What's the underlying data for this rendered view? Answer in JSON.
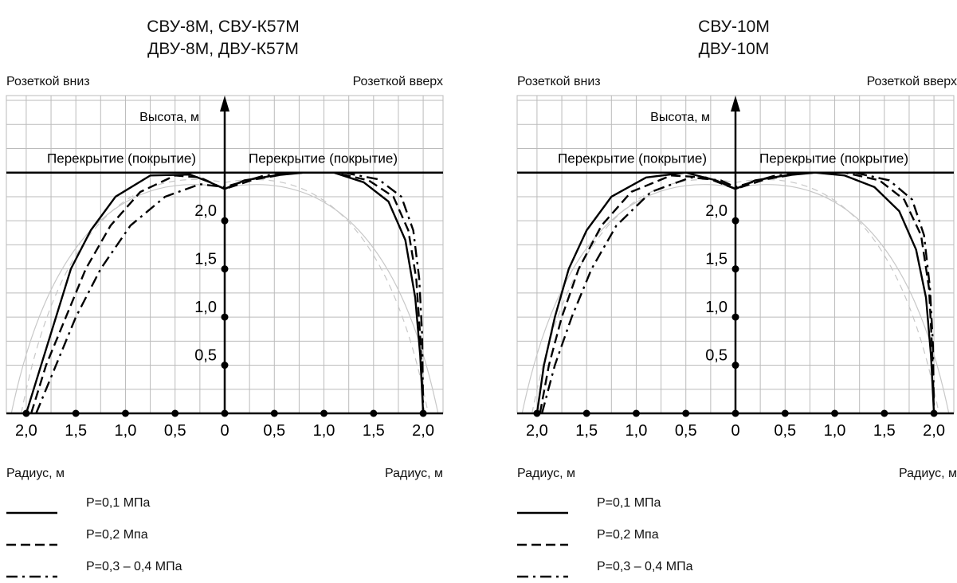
{
  "chart_data": [
    {
      "type": "line",
      "title_lines": [
        "СВУ-8М, СВУ-К57М",
        "ДВУ-8М, ДВУ-К57М"
      ],
      "corner_left": "Розеткой вниз",
      "corner_right": "Розеткой вверх",
      "ylabel": "Высота, м",
      "ceiling_left": "Перекрытие (покрытие)",
      "ceiling_right": "Перекрытие (покрытие)",
      "xlabel_left": "Радиус, м",
      "xlabel_right": "Радиус, м",
      "x_ticks": [
        "2,0",
        "1,5",
        "1,0",
        "0,5",
        "0",
        "0,5",
        "1,0",
        "1,5",
        "2,0"
      ],
      "y_ticks": [
        "0,5",
        "1,0",
        "1,5",
        "2,0"
      ],
      "xlim": [
        -2.2,
        2.2
      ],
      "ylim": [
        0,
        3.3
      ],
      "grid": true,
      "ceiling_height": 2.5,
      "series": [
        {
          "name": "P=0,1 МПа",
          "style": "solid",
          "points": [
            [
              -2.0,
              0
            ],
            [
              -1.85,
              0.5
            ],
            [
              -1.7,
              1.0
            ],
            [
              -1.55,
              1.5
            ],
            [
              -1.35,
              1.9
            ],
            [
              -1.1,
              2.25
            ],
            [
              -0.75,
              2.47
            ],
            [
              -0.35,
              2.48
            ],
            [
              -0.15,
              2.4
            ],
            [
              0,
              2.33
            ],
            [
              0.2,
              2.42
            ],
            [
              0.5,
              2.47
            ],
            [
              0.8,
              2.5
            ],
            [
              1.1,
              2.5
            ],
            [
              1.4,
              2.4
            ],
            [
              1.65,
              2.2
            ],
            [
              1.82,
              1.8
            ],
            [
              1.92,
              1.2
            ],
            [
              1.97,
              0.6
            ],
            [
              2.0,
              0
            ]
          ]
        },
        {
          "name": "P=0,2 Мпа",
          "style": "dash",
          "points": [
            [
              -1.95,
              0
            ],
            [
              -1.8,
              0.5
            ],
            [
              -1.6,
              1.0
            ],
            [
              -1.4,
              1.5
            ],
            [
              -1.15,
              1.95
            ],
            [
              -0.85,
              2.3
            ],
            [
              -0.5,
              2.47
            ],
            [
              -0.25,
              2.45
            ],
            [
              0,
              2.33
            ],
            [
              0.3,
              2.43
            ],
            [
              0.7,
              2.5
            ],
            [
              1.1,
              2.5
            ],
            [
              1.45,
              2.42
            ],
            [
              1.7,
              2.25
            ],
            [
              1.85,
              1.9
            ],
            [
              1.93,
              1.4
            ],
            [
              1.97,
              0.8
            ],
            [
              2.0,
              0
            ]
          ]
        },
        {
          "name": "P=0,3 – 0,4 МПа",
          "style": "dashdot",
          "points": [
            [
              -1.9,
              0
            ],
            [
              -1.7,
              0.5
            ],
            [
              -1.5,
              1.0
            ],
            [
              -1.25,
              1.5
            ],
            [
              -0.95,
              1.95
            ],
            [
              -0.6,
              2.25
            ],
            [
              -0.25,
              2.38
            ],
            [
              0,
              2.35
            ],
            [
              0.4,
              2.47
            ],
            [
              0.8,
              2.5
            ],
            [
              1.2,
              2.5
            ],
            [
              1.55,
              2.43
            ],
            [
              1.78,
              2.25
            ],
            [
              1.9,
              1.9
            ],
            [
              1.96,
              1.4
            ],
            [
              1.99,
              0.8
            ],
            [
              2.0,
              0
            ]
          ]
        }
      ]
    },
    {
      "type": "line",
      "title_lines": [
        "СВУ-10М",
        "ДВУ-10М"
      ],
      "corner_left": "Розеткой вниз",
      "corner_right": "Розеткой вверх",
      "ylabel": "Высота, м",
      "ceiling_left": "Перекрытие (покрытие)",
      "ceiling_right": "Перекрытие (покрытие)",
      "xlabel_left": "Радиус, м",
      "xlabel_right": "Радиус, м",
      "x_ticks": [
        "2,0",
        "1,5",
        "1,0",
        "0,5",
        "0",
        "0,5",
        "1,0",
        "1,5",
        "2,0"
      ],
      "y_ticks": [
        "0,5",
        "1,0",
        "1,5",
        "2,0"
      ],
      "xlim": [
        -2.2,
        2.2
      ],
      "ylim": [
        0,
        3.3
      ],
      "grid": true,
      "ceiling_height": 2.5,
      "series": [
        {
          "name": "P=0,1 МПа",
          "style": "solid",
          "points": [
            [
              -2.0,
              0
            ],
            [
              -1.93,
              0.5
            ],
            [
              -1.82,
              1.0
            ],
            [
              -1.68,
              1.5
            ],
            [
              -1.5,
              1.9
            ],
            [
              -1.25,
              2.25
            ],
            [
              -0.9,
              2.45
            ],
            [
              -0.5,
              2.5
            ],
            [
              -0.2,
              2.42
            ],
            [
              0,
              2.33
            ],
            [
              0.2,
              2.42
            ],
            [
              0.5,
              2.47
            ],
            [
              0.8,
              2.5
            ],
            [
              1.1,
              2.47
            ],
            [
              1.4,
              2.35
            ],
            [
              1.65,
              2.1
            ],
            [
              1.82,
              1.7
            ],
            [
              1.92,
              1.2
            ],
            [
              1.97,
              0.6
            ],
            [
              2.0,
              0
            ]
          ]
        },
        {
          "name": "P=0,2 Мпа",
          "style": "dash",
          "points": [
            [
              -1.97,
              0
            ],
            [
              -1.88,
              0.5
            ],
            [
              -1.75,
              1.0
            ],
            [
              -1.58,
              1.5
            ],
            [
              -1.35,
              1.95
            ],
            [
              -1.05,
              2.3
            ],
            [
              -0.65,
              2.47
            ],
            [
              -0.3,
              2.45
            ],
            [
              0,
              2.33
            ],
            [
              0.3,
              2.43
            ],
            [
              0.7,
              2.5
            ],
            [
              1.1,
              2.5
            ],
            [
              1.45,
              2.42
            ],
            [
              1.7,
              2.22
            ],
            [
              1.87,
              1.85
            ],
            [
              1.95,
              1.3
            ],
            [
              1.98,
              0.7
            ],
            [
              2.0,
              0
            ]
          ]
        },
        {
          "name": "P=0,3 – 0,4 МПа",
          "style": "dashdot",
          "points": [
            [
              -1.95,
              0
            ],
            [
              -1.82,
              0.5
            ],
            [
              -1.65,
              1.0
            ],
            [
              -1.45,
              1.5
            ],
            [
              -1.2,
              1.95
            ],
            [
              -0.85,
              2.3
            ],
            [
              -0.45,
              2.45
            ],
            [
              -0.15,
              2.42
            ],
            [
              0,
              2.35
            ],
            [
              0.4,
              2.47
            ],
            [
              0.8,
              2.5
            ],
            [
              1.2,
              2.5
            ],
            [
              1.55,
              2.42
            ],
            [
              1.78,
              2.22
            ],
            [
              1.9,
              1.85
            ],
            [
              1.96,
              1.3
            ],
            [
              1.99,
              0.7
            ],
            [
              2.0,
              0
            ]
          ]
        }
      ]
    }
  ]
}
